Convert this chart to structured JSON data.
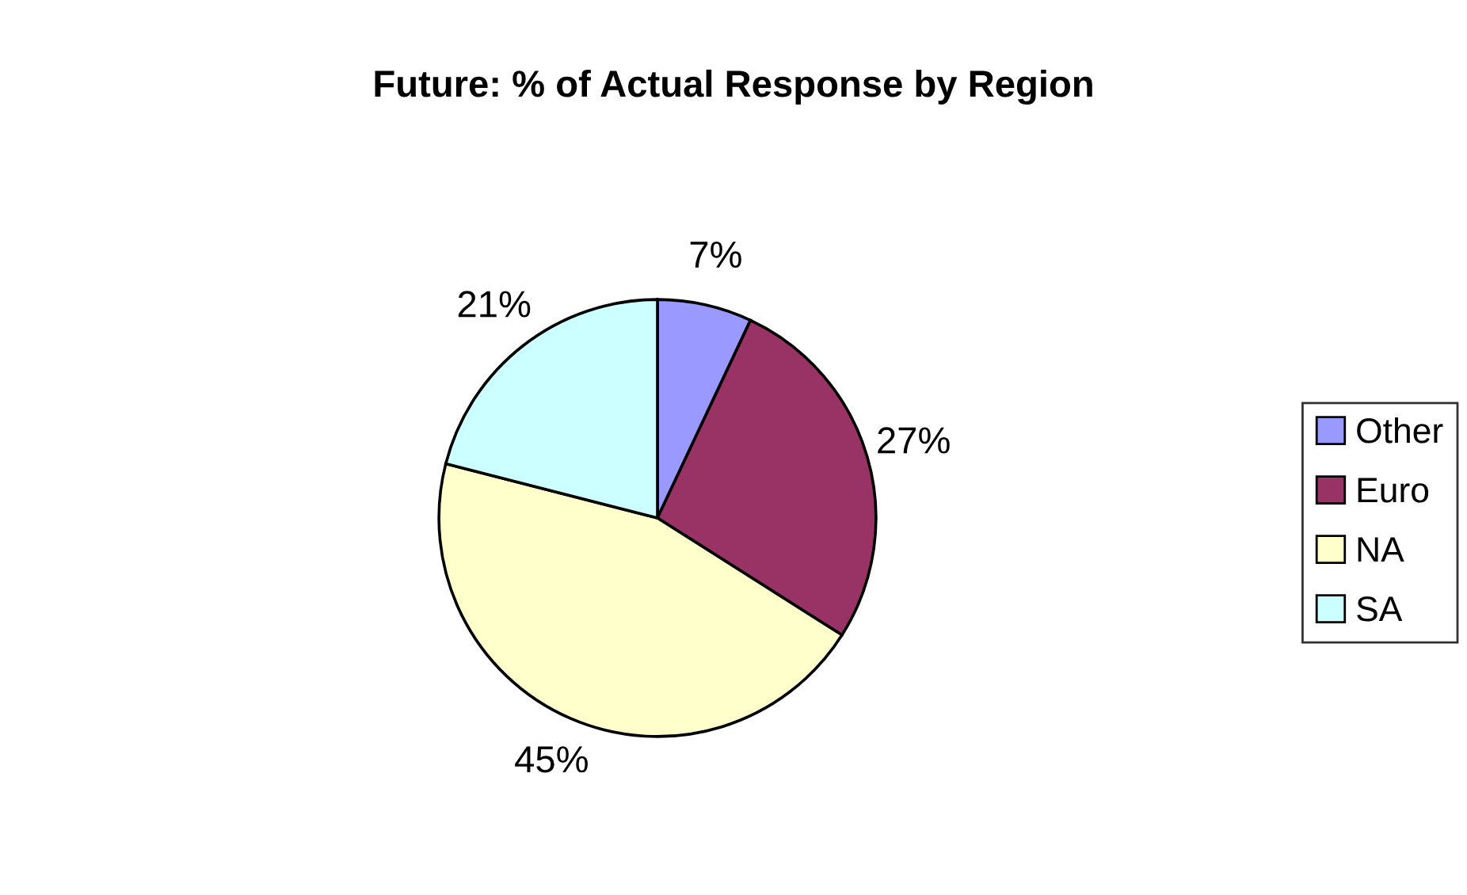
{
  "chart_data": {
    "type": "pie",
    "title": "Future: % of Actual Response by Region",
    "categories": [
      "Other",
      "Euro",
      "NA",
      "SA"
    ],
    "values": [
      7,
      27,
      45,
      21
    ],
    "colors": [
      "#9999ff",
      "#993366",
      "#ffffcc",
      "#ccffff"
    ],
    "value_labels": [
      "7%",
      "27%",
      "45%",
      "21%"
    ],
    "legend": "right"
  }
}
